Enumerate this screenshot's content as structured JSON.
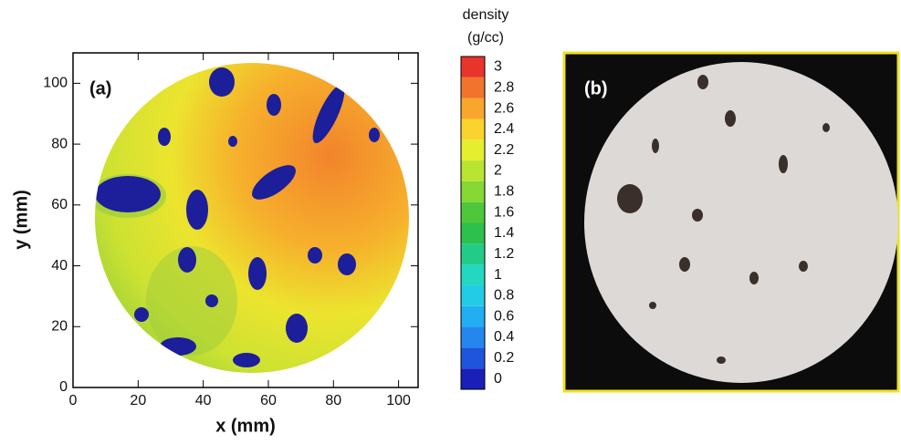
{
  "chart_data": {
    "type": "heatmap",
    "panel_label": "(a)",
    "xlabel": "x (mm)",
    "ylabel": "y (mm)",
    "xlim": [
      0,
      106
    ],
    "xticks": [
      0,
      20,
      40,
      60,
      80,
      100
    ],
    "ylim": [
      0,
      110
    ],
    "yticks": [
      0,
      20,
      40,
      60,
      80,
      100
    ],
    "colorbar": {
      "title": [
        "density",
        "(g/cc)"
      ],
      "ticks": [
        0,
        0.2,
        0.4,
        0.6,
        0.8,
        1,
        1.2,
        1.4,
        1.6,
        1.8,
        2,
        2.2,
        2.4,
        2.6,
        2.8,
        3
      ],
      "colors": [
        "#1a1fb8",
        "#1f55dc",
        "#2487ee",
        "#22aef2",
        "#22cce6",
        "#22d8c0",
        "#22cc88",
        "#2cc04c",
        "#4ec83a",
        "#86d834",
        "#b8e432",
        "#e6ee30",
        "#fad42c",
        "#f8a62c",
        "#f2742c",
        "#e8342c"
      ]
    }
  },
  "photo": {
    "panel_label": "(b)"
  }
}
